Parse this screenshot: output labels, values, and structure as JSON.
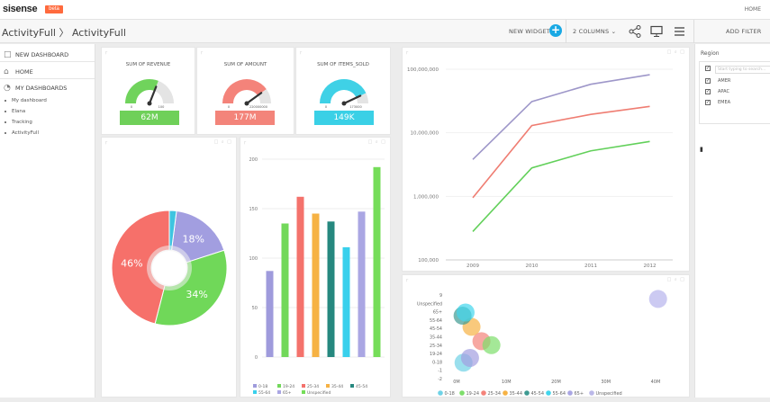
{
  "app": {
    "logo": "sisense",
    "beta": "beta",
    "home": "HOME"
  },
  "toolbar": {
    "breadcrumb": "ActivityFull 〉 ActivityFull",
    "new_widget": "NEW WIDGET",
    "columns": "2 COLUMNS ⌄",
    "add_filter": "ADD FILTER"
  },
  "sidebar": {
    "new_dashboard": "NEW DASHBOARD",
    "home": "HOME",
    "my_dashboards": "MY DASHBOARDS",
    "items": [
      "My dashboard",
      "Elana",
      "Tracking",
      "ActivityFull"
    ]
  },
  "gauges": [
    {
      "title": "SUM OF REVENUE",
      "value": "62M",
      "min": "0",
      "max": "100",
      "level": 0.62,
      "color": "#70d35c",
      "band": "#6fd059"
    },
    {
      "title": "SUM OF AMOUNT",
      "value": "177M",
      "min": "0",
      "max": "220000000",
      "level": 0.8,
      "color": "#f4837a",
      "band": "#f3847a"
    },
    {
      "title": "SUM OF ITEMS_SOLD",
      "value": "149K",
      "min": "0",
      "max": "173000",
      "level": 0.86,
      "color": "#3fd1e6",
      "band": "#3ad0e6"
    }
  ],
  "filter": {
    "title": "Region",
    "search_placeholder": "Start typing to search...",
    "options": [
      "AMER",
      "APAC",
      "EMEA"
    ]
  },
  "chart_data": [
    {
      "type": "pie",
      "labels": [
        "",
        "",
        "",
        ""
      ],
      "values": [
        18,
        34,
        46,
        2
      ],
      "data_labels": [
        "18%",
        "34%",
        "46%",
        ""
      ],
      "colors": [
        "#a29ee0",
        "#70d859",
        "#f6706a",
        "#3fc4e0"
      ]
    },
    {
      "type": "bar",
      "categories": [
        "0-18",
        "19-24",
        "25-34",
        "35-44",
        "45-54",
        "55-64",
        "65+",
        "Unspecified"
      ],
      "values": [
        87,
        135,
        162,
        145,
        137,
        111,
        147,
        192
      ],
      "colors": [
        "#9f9bdc",
        "#72d85a",
        "#f4726c",
        "#f6b244",
        "#26887f",
        "#39d0ec",
        "#aaa6e3",
        "#75dd59"
      ],
      "ylim": [
        0,
        200
      ],
      "yticks": [
        "0",
        "50",
        "100",
        "150",
        "200"
      ],
      "legend": [
        "0-18",
        "19-24",
        "25-34",
        "35-44",
        "45-54",
        "55-64",
        "65+",
        "Unspecified"
      ]
    },
    {
      "type": "line",
      "x": [
        "2009",
        "2010",
        "2011",
        "2012"
      ],
      "yscale": "log",
      "yticks": [
        "100,000",
        "1,000,000",
        "10,000,000",
        "100,000,000"
      ],
      "ylim": [
        100000,
        100000000
      ],
      "series": [
        {
          "values": [
            3800000,
            31000000,
            58000000,
            82000000
          ],
          "color": "#9e97c9"
        },
        {
          "values": [
            950000,
            13000000,
            19500000,
            26000000
          ],
          "color": "#ef7d72"
        },
        {
          "values": [
            280000,
            2800000,
            5200000,
            7300000
          ],
          "color": "#62d05a"
        }
      ]
    },
    {
      "type": "scatter",
      "yticks": [
        "-2",
        "-1",
        "0-18",
        "19-24",
        "25-34",
        "35-44",
        "45-54",
        "55-64",
        "65+",
        "Unspecified",
        "9"
      ],
      "xticks": [
        "0M",
        "10M",
        "20M",
        "30M",
        "40M"
      ],
      "xlim": [
        0,
        42000000
      ],
      "points": [
        {
          "x": 1400000,
          "y": 0.5,
          "r": 10,
          "color": "#6fd2e6"
        },
        {
          "x": 2700000,
          "y": 1.1,
          "r": 10,
          "color": "#a29ee0"
        },
        {
          "x": 5000000,
          "y": 3.2,
          "r": 10,
          "color": "#f4837a"
        },
        {
          "x": 7000000,
          "y": 2.7,
          "r": 10,
          "color": "#7ede6b"
        },
        {
          "x": 3000000,
          "y": 5.0,
          "r": 10,
          "color": "#f6b244"
        },
        {
          "x": 1200000,
          "y": 6.4,
          "r": 10,
          "color": "#3e9a92"
        },
        {
          "x": 1800000,
          "y": 6.8,
          "r": 10,
          "color": "#42d5ec"
        },
        {
          "x": 40500000,
          "y": 8.5,
          "r": 10,
          "color": "#b7b3ec"
        }
      ],
      "legend": [
        "0-18",
        "19-24",
        "25-34",
        "35-44",
        "45-54",
        "55-64",
        "65+",
        "Unspecified"
      ],
      "legend_colors": [
        "#6fd2e6",
        "#7ede6b",
        "#f4837a",
        "#f6b244",
        "#3e9a92",
        "#42d5ec",
        "#aaa6e3",
        "#bbb8e8"
      ]
    }
  ]
}
